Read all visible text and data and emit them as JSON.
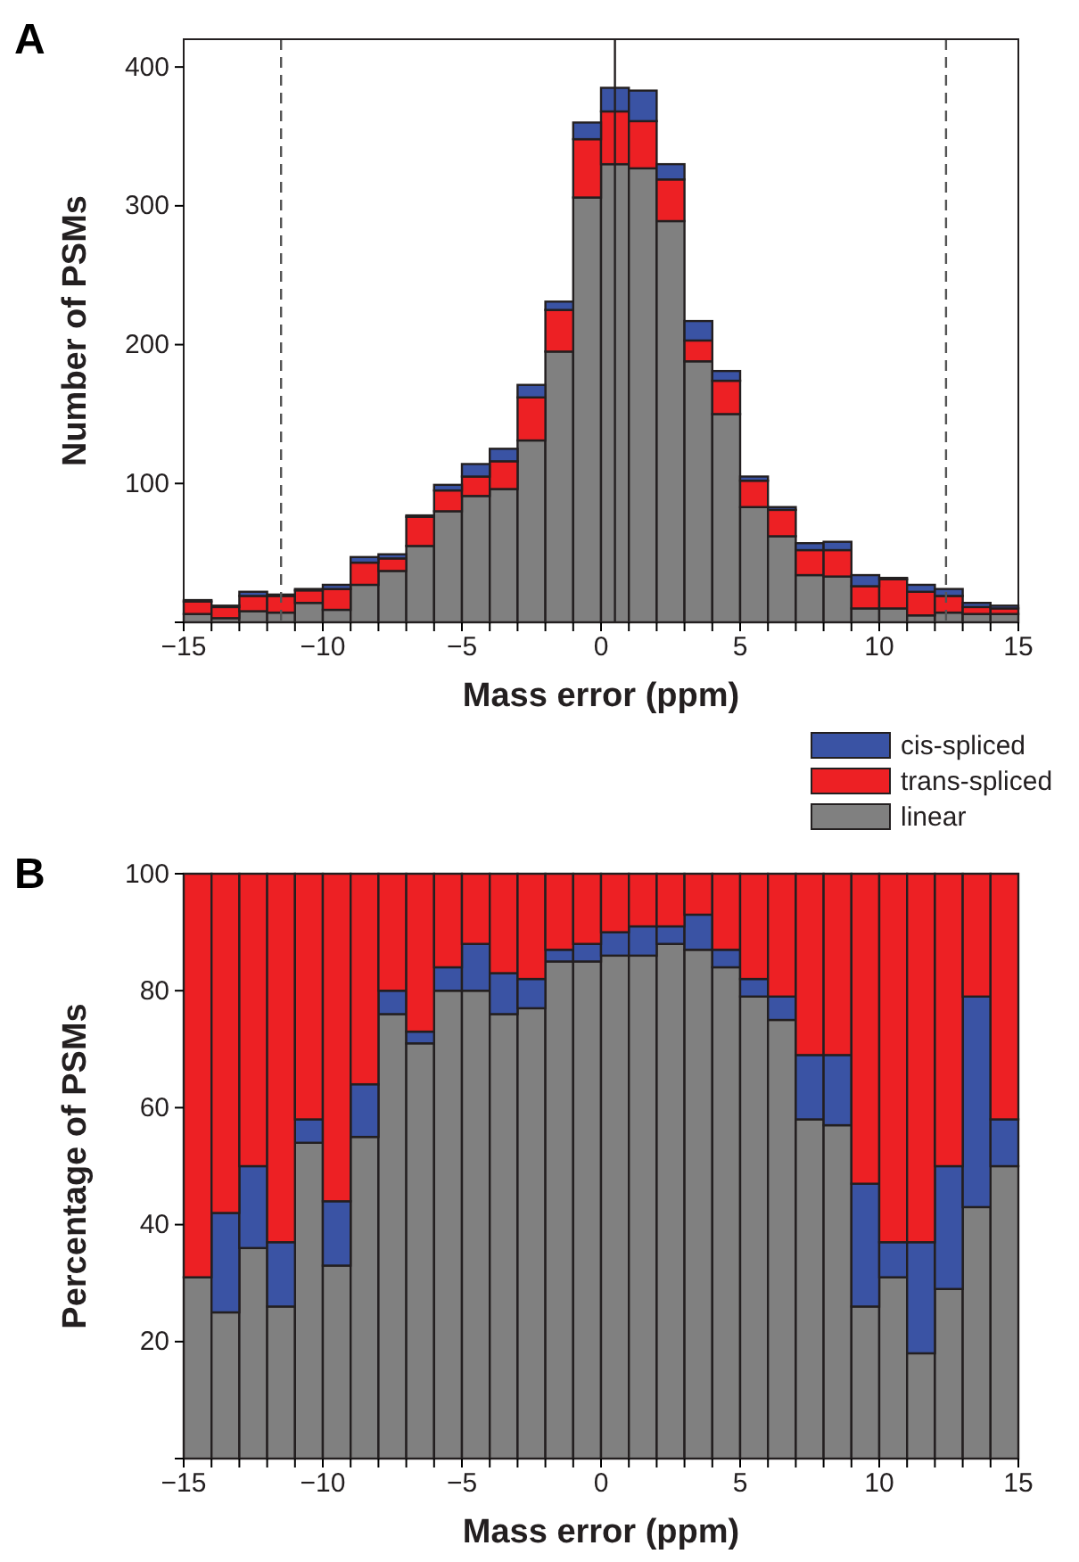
{
  "chart_data": [
    {
      "type": "bar",
      "annotations": [
        "A"
      ],
      "xlabel": "Mass error (ppm)",
      "ylabel": "Number of PSMs",
      "stacked": true,
      "legend": "bottom right",
      "grid": false,
      "x": [
        -14.5,
        -13.5,
        -12.5,
        -11.5,
        -10.5,
        -9.5,
        -8.5,
        -7.5,
        -6.5,
        -5.5,
        -4.5,
        -3.5,
        -2.5,
        -1.5,
        -0.5,
        0.5,
        1.5,
        2.5,
        3.5,
        4.5,
        5.5,
        6.5,
        7.5,
        8.5,
        9.5,
        10.5,
        11.5,
        12.5,
        13.5,
        14.5
      ],
      "series": [
        {
          "name": "linear",
          "color": "#808080",
          "values": [
            6,
            3,
            8,
            7,
            14,
            9,
            27,
            37,
            55,
            80,
            91,
            96,
            131,
            195,
            306,
            330,
            327,
            289,
            188,
            150,
            83,
            62,
            34,
            33,
            10,
            10,
            5,
            7,
            6,
            6
          ]
        },
        {
          "name": "trans-spliced",
          "color": "#ed2024",
          "values": [
            9,
            8,
            11,
            12,
            9,
            15,
            16,
            9,
            21,
            15,
            14,
            20,
            31,
            30,
            42,
            38,
            34,
            30,
            15,
            24,
            19,
            19,
            18,
            19,
            16,
            21,
            17,
            12,
            5,
            4
          ]
        },
        {
          "name": "cis-spliced",
          "color": "#3a53a4",
          "values": [
            1,
            1,
            3,
            1,
            1,
            3,
            4,
            3,
            1,
            4,
            9,
            9,
            9,
            6,
            12,
            17,
            22,
            11,
            14,
            7,
            3,
            2,
            5,
            6,
            8,
            1,
            5,
            5,
            3,
            2
          ]
        }
      ],
      "xlim": [
        -15,
        15
      ],
      "ylim": [
        0,
        420
      ],
      "xticks": [
        -15,
        {
          "value": -14,
          "label": null
        },
        {
          "value": -13,
          "label": null
        },
        {
          "value": -12,
          "label": null
        },
        {
          "value": -11,
          "label": null
        },
        -10,
        {
          "value": -9,
          "label": null
        },
        {
          "value": -8,
          "label": null
        },
        {
          "value": -7,
          "label": null
        },
        {
          "value": -6,
          "label": null
        },
        -5,
        {
          "value": -4,
          "label": null
        },
        {
          "value": -3,
          "label": null
        },
        {
          "value": -2,
          "label": null
        },
        {
          "value": -1,
          "label": null
        },
        0,
        {
          "value": 1,
          "label": null
        },
        {
          "value": 2,
          "label": null
        },
        {
          "value": 3,
          "label": null
        },
        {
          "value": 4,
          "label": null
        },
        5,
        {
          "value": 6,
          "label": null
        },
        {
          "value": 7,
          "label": null
        },
        {
          "value": 8,
          "label": null
        },
        {
          "value": 9,
          "label": null
        },
        10,
        {
          "value": 11,
          "label": null
        },
        {
          "value": 12,
          "label": null
        },
        {
          "value": 13,
          "label": null
        },
        {
          "value": 14,
          "label": null
        },
        15
      ],
      "yticks": [
        {
          "value": 0,
          "label": null
        },
        100,
        200,
        300,
        400
      ],
      "ref_lines": [
        {
          "axis": "x",
          "value": -11.5,
          "color": "#555555",
          "line_style": "dashed"
        },
        {
          "axis": "x",
          "value": 0.5,
          "color": "#231f20",
          "line_style": "solid"
        },
        {
          "axis": "x",
          "value": 12.4,
          "color": "#555555",
          "line_style": "dashed"
        }
      ]
    },
    {
      "type": "bar",
      "annotations": [
        "B"
      ],
      "xlabel": "Mass error (ppm)",
      "ylabel": "Percentage of PSMs",
      "stacked": true,
      "grid": false,
      "x": [
        -14.5,
        -13.5,
        -12.5,
        -11.5,
        -10.5,
        -9.5,
        -8.5,
        -7.5,
        -6.5,
        -5.5,
        -4.5,
        -3.5,
        -2.5,
        -1.5,
        -0.5,
        0.5,
        1.5,
        2.5,
        3.5,
        4.5,
        5.5,
        6.5,
        7.5,
        8.5,
        9.5,
        10.5,
        11.5,
        12.5,
        13.5,
        14.5
      ],
      "series": [
        {
          "color": "#808080",
          "values": [
            31,
            25,
            36,
            26,
            54,
            33,
            55,
            76,
            71,
            80,
            80,
            76,
            77,
            85,
            85,
            86,
            86,
            88,
            87,
            84,
            79,
            75,
            58,
            57,
            26,
            31,
            18,
            29,
            43,
            50
          ]
        },
        {
          "color": "#3a53a4",
          "values": [
            0,
            17,
            14,
            11,
            4,
            11,
            9,
            4,
            2,
            4,
            8,
            7,
            5,
            2,
            3,
            4,
            5,
            3,
            6,
            3,
            3,
            4,
            11,
            12,
            21,
            6,
            19,
            21,
            36,
            8
          ]
        },
        {
          "color": "#ed2024",
          "values": [
            69,
            58,
            50,
            63,
            42,
            56,
            36,
            20,
            27,
            16,
            12,
            17,
            18,
            13,
            12,
            10,
            9,
            9,
            7,
            13,
            18,
            21,
            31,
            31,
            53,
            63,
            63,
            50,
            21,
            42
          ]
        }
      ],
      "xlim": [
        -15,
        15
      ],
      "ylim": [
        0,
        100
      ],
      "xticks": [
        -15,
        {
          "value": -14,
          "label": null
        },
        {
          "value": -13,
          "label": null
        },
        {
          "value": -12,
          "label": null
        },
        {
          "value": -11,
          "label": null
        },
        -10,
        {
          "value": -9,
          "label": null
        },
        {
          "value": -8,
          "label": null
        },
        {
          "value": -7,
          "label": null
        },
        {
          "value": -6,
          "label": null
        },
        -5,
        {
          "value": -4,
          "label": null
        },
        {
          "value": -3,
          "label": null
        },
        {
          "value": -2,
          "label": null
        },
        {
          "value": -1,
          "label": null
        },
        0,
        {
          "value": 1,
          "label": null
        },
        {
          "value": 2,
          "label": null
        },
        {
          "value": 3,
          "label": null
        },
        {
          "value": 4,
          "label": null
        },
        5,
        {
          "value": 6,
          "label": null
        },
        {
          "value": 7,
          "label": null
        },
        {
          "value": 8,
          "label": null
        },
        {
          "value": 9,
          "label": null
        },
        10,
        {
          "value": 11,
          "label": null
        },
        {
          "value": 12,
          "label": null
        },
        {
          "value": 13,
          "label": null
        },
        {
          "value": 14,
          "label": null
        },
        15
      ],
      "yticks": [
        {
          "value": 0,
          "label": null
        },
        20,
        40,
        60,
        80,
        100
      ]
    }
  ]
}
